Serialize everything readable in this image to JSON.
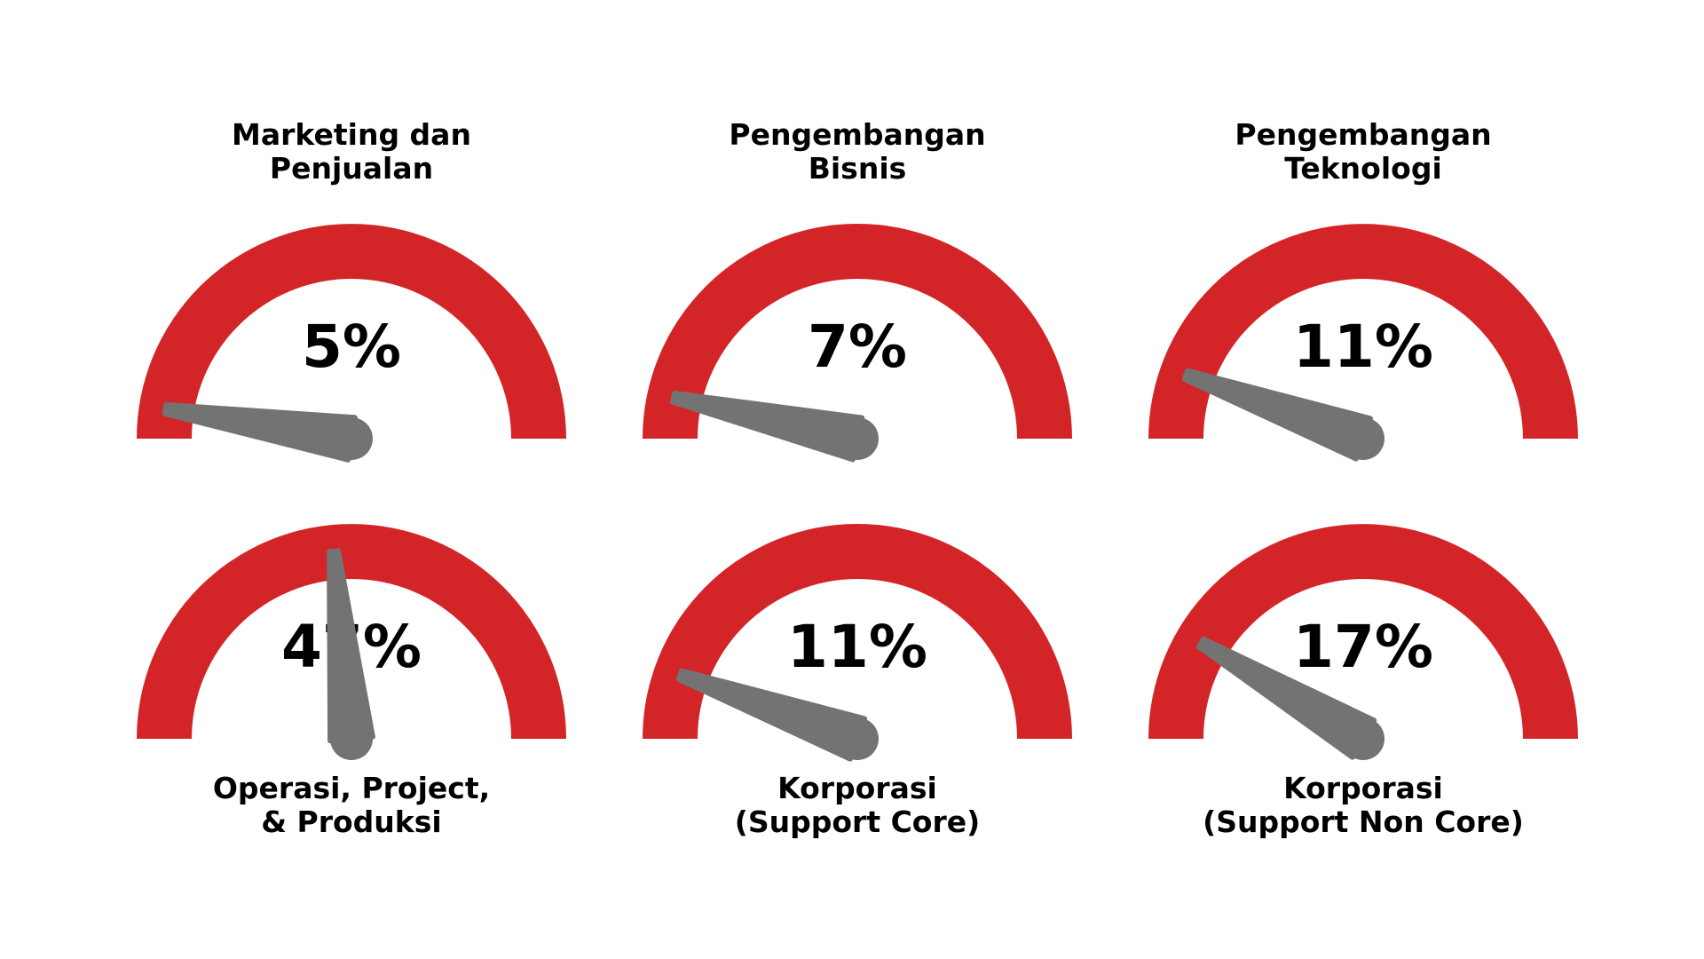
{
  "colors": {
    "arc": "#d32528",
    "needle": "#737373",
    "text": "#000000",
    "background": "#ffffff"
  },
  "chart_data": {
    "type": "gauge",
    "scale": [
      0,
      100
    ],
    "gauges": [
      {
        "label_lines": [
          "Marketing dan",
          "Penjualan"
        ],
        "value": 5,
        "value_label": "5%"
      },
      {
        "label_lines": [
          "Pengembangan",
          "Bisnis"
        ],
        "value": 7,
        "value_label": "7%"
      },
      {
        "label_lines": [
          "Pengembangan",
          "Teknologi"
        ],
        "value": 11,
        "value_label": "11%"
      },
      {
        "label_lines": [
          "Operasi, Project,",
          "& Produksi"
        ],
        "value": 47,
        "value_label": "47%"
      },
      {
        "label_lines": [
          "Korporasi",
          "(Support Core)"
        ],
        "value": 11,
        "value_label": "11%"
      },
      {
        "label_lines": [
          "Korporasi",
          "(Support Non Core)"
        ],
        "value": 17,
        "value_label": "17%"
      }
    ]
  }
}
